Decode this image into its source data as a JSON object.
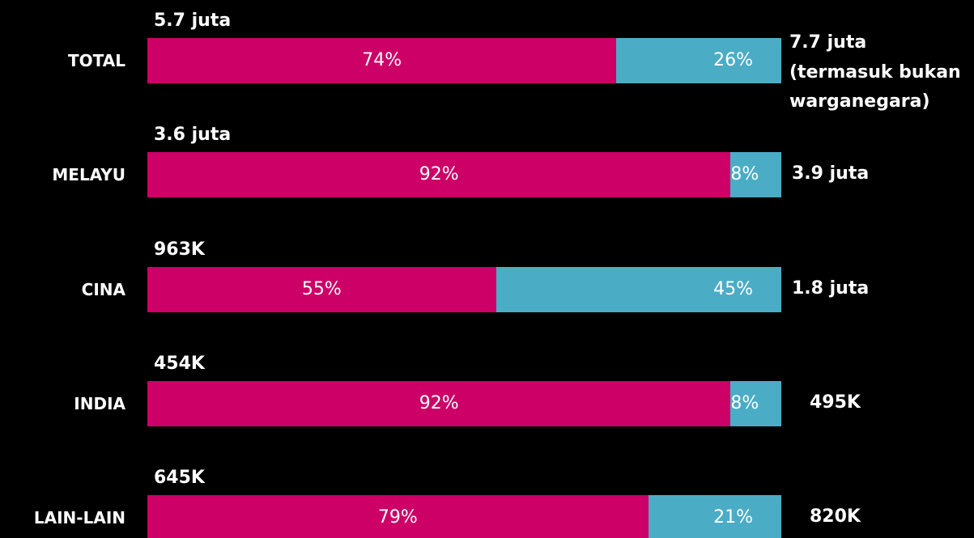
{
  "chart_data": {
    "type": "bar",
    "orientation": "horizontal",
    "stacked": true,
    "categories": [
      "TOTAL",
      "MELAYU",
      "CINA",
      "INDIA",
      "LAIN-LAIN"
    ],
    "xlim": [
      0,
      100
    ],
    "series": [
      {
        "color": "#cc0066",
        "values": [
          74,
          92,
          55,
          92,
          79
        ],
        "value_labels": [
          "74%",
          "92%",
          "55%",
          "92%",
          "79%"
        ]
      },
      {
        "color": "#4bacc6",
        "values": [
          26,
          8,
          45,
          8,
          21
        ],
        "value_labels": [
          "26%",
          "8%",
          "45%",
          "8%",
          "21%"
        ]
      }
    ],
    "left_annotations": [
      "5.7 juta",
      "3.6 juta",
      "963K",
      "454K",
      "645K"
    ],
    "right_annotations": [
      "7.7 juta (termasuk bukan warganegara)",
      "3.9 juta",
      "1.8 juta",
      "495K",
      "820K"
    ]
  }
}
